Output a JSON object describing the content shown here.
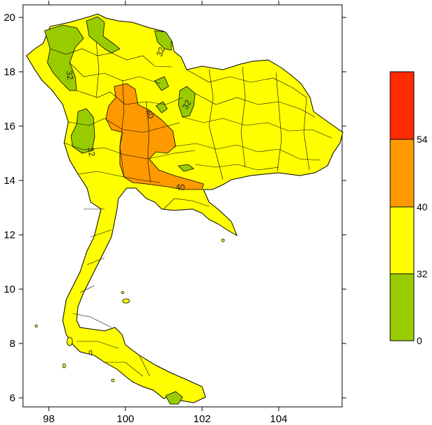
{
  "map": {
    "x_ticks": [
      "98",
      "100",
      "102",
      "104"
    ],
    "y_ticks": [
      "20",
      "18",
      "16",
      "14",
      "12",
      "10",
      "8",
      "6"
    ],
    "contour_labels": [
      "32",
      "32",
      "32",
      "32",
      "40",
      "40"
    ]
  },
  "legend": {
    "bins": [
      {
        "from": 0,
        "to": 32,
        "color": "#99cc00"
      },
      {
        "from": 32,
        "to": 40,
        "color": "#ffff00"
      },
      {
        "from": 40,
        "to": 54,
        "color": "#ff9900"
      },
      {
        "from": 54,
        "to": null,
        "color": "#ff2a00"
      }
    ],
    "labels": [
      "0",
      "32",
      "40",
      "54"
    ]
  },
  "colors": {
    "land": "#ffff00",
    "low": "#99cc00",
    "high": "#ff9900",
    "extreme": "#ff2a00"
  }
}
